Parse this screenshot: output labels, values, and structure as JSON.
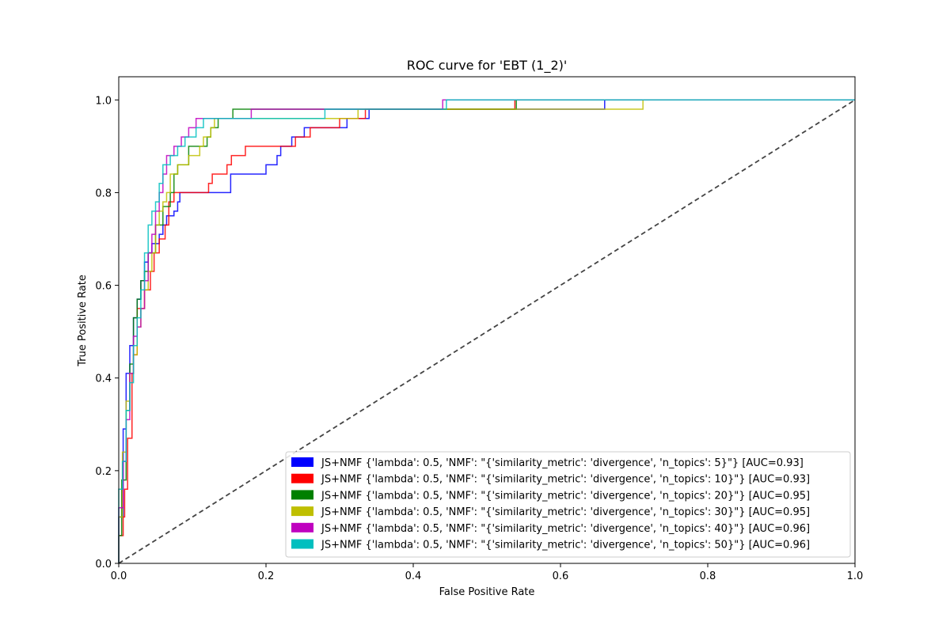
{
  "chart_data": {
    "type": "line",
    "title": "ROC curve for 'EBT (1_2)'",
    "xlabel": "False Positive Rate",
    "ylabel": "True Positive Rate",
    "xlim": [
      0.0,
      1.0
    ],
    "ylim": [
      0.0,
      1.05
    ],
    "xticks": [
      "0.0",
      "0.2",
      "0.4",
      "0.6",
      "0.8",
      "1.0"
    ],
    "yticks": [
      "0.0",
      "0.2",
      "0.4",
      "0.6",
      "0.8",
      "1.0"
    ],
    "grid": false,
    "legend_position": "lower-right",
    "diagonal": {
      "style": "dashed",
      "color": "#444444",
      "points": [
        [
          0,
          0
        ],
        [
          1,
          1
        ]
      ]
    },
    "series": [
      {
        "name": "JS+NMF {'lambda': 0.5, 'NMF': \"{'similarity_metric': 'divergence', 'n_topics': 5}\"} [AUC=0.93]",
        "color": "#0000ff",
        "points": [
          [
            0,
            0
          ],
          [
            0,
            0.1
          ],
          [
            0.006,
            0.1
          ],
          [
            0.006,
            0.29
          ],
          [
            0.01,
            0.29
          ],
          [
            0.01,
            0.41
          ],
          [
            0.015,
            0.41
          ],
          [
            0.015,
            0.47
          ],
          [
            0.02,
            0.47
          ],
          [
            0.02,
            0.53
          ],
          [
            0.025,
            0.53
          ],
          [
            0.025,
            0.57
          ],
          [
            0.03,
            0.57
          ],
          [
            0.03,
            0.61
          ],
          [
            0.035,
            0.61
          ],
          [
            0.035,
            0.65
          ],
          [
            0.04,
            0.65
          ],
          [
            0.04,
            0.67
          ],
          [
            0.045,
            0.67
          ],
          [
            0.045,
            0.69
          ],
          [
            0.055,
            0.69
          ],
          [
            0.055,
            0.71
          ],
          [
            0.06,
            0.71
          ],
          [
            0.06,
            0.73
          ],
          [
            0.065,
            0.73
          ],
          [
            0.065,
            0.75
          ],
          [
            0.075,
            0.75
          ],
          [
            0.075,
            0.76
          ],
          [
            0.08,
            0.76
          ],
          [
            0.08,
            0.78
          ],
          [
            0.083,
            0.78
          ],
          [
            0.083,
            0.8
          ],
          [
            0.152,
            0.8
          ],
          [
            0.152,
            0.84
          ],
          [
            0.2,
            0.84
          ],
          [
            0.2,
            0.86
          ],
          [
            0.215,
            0.86
          ],
          [
            0.215,
            0.88
          ],
          [
            0.22,
            0.88
          ],
          [
            0.22,
            0.9
          ],
          [
            0.235,
            0.9
          ],
          [
            0.235,
            0.92
          ],
          [
            0.252,
            0.92
          ],
          [
            0.252,
            0.94
          ],
          [
            0.31,
            0.94
          ],
          [
            0.31,
            0.96
          ],
          [
            0.34,
            0.96
          ],
          [
            0.34,
            0.98
          ],
          [
            0.66,
            0.98
          ],
          [
            0.66,
            1.0
          ],
          [
            1.0,
            1.0
          ]
        ]
      },
      {
        "name": "JS+NMF {'lambda': 0.5, 'NMF': \"{'similarity_metric': 'divergence', 'n_topics': 10}\"} [AUC=0.93]",
        "color": "#ff0000",
        "points": [
          [
            0,
            0
          ],
          [
            0,
            0.06
          ],
          [
            0.006,
            0.06
          ],
          [
            0.006,
            0.1
          ],
          [
            0.008,
            0.1
          ],
          [
            0.008,
            0.16
          ],
          [
            0.012,
            0.16
          ],
          [
            0.012,
            0.27
          ],
          [
            0.018,
            0.27
          ],
          [
            0.018,
            0.41
          ],
          [
            0.02,
            0.41
          ],
          [
            0.02,
            0.45
          ],
          [
            0.025,
            0.45
          ],
          [
            0.025,
            0.55
          ],
          [
            0.035,
            0.55
          ],
          [
            0.035,
            0.59
          ],
          [
            0.043,
            0.59
          ],
          [
            0.043,
            0.63
          ],
          [
            0.048,
            0.63
          ],
          [
            0.048,
            0.67
          ],
          [
            0.055,
            0.67
          ],
          [
            0.055,
            0.7
          ],
          [
            0.063,
            0.7
          ],
          [
            0.063,
            0.73
          ],
          [
            0.068,
            0.73
          ],
          [
            0.068,
            0.78
          ],
          [
            0.075,
            0.78
          ],
          [
            0.075,
            0.8
          ],
          [
            0.122,
            0.8
          ],
          [
            0.122,
            0.82
          ],
          [
            0.127,
            0.82
          ],
          [
            0.127,
            0.84
          ],
          [
            0.147,
            0.84
          ],
          [
            0.147,
            0.86
          ],
          [
            0.153,
            0.86
          ],
          [
            0.153,
            0.88
          ],
          [
            0.172,
            0.88
          ],
          [
            0.172,
            0.9
          ],
          [
            0.24,
            0.9
          ],
          [
            0.24,
            0.92
          ],
          [
            0.26,
            0.92
          ],
          [
            0.26,
            0.94
          ],
          [
            0.3,
            0.94
          ],
          [
            0.3,
            0.96
          ],
          [
            0.335,
            0.96
          ],
          [
            0.335,
            0.98
          ],
          [
            0.538,
            0.98
          ],
          [
            0.538,
            1.0
          ],
          [
            1.0,
            1.0
          ]
        ]
      },
      {
        "name": "JS+NMF {'lambda': 0.5, 'NMF': \"{'similarity_metric': 'divergence', 'n_topics': 20}\"} [AUC=0.95]",
        "color": "#008000",
        "points": [
          [
            0,
            0
          ],
          [
            0,
            0.06
          ],
          [
            0.004,
            0.06
          ],
          [
            0.004,
            0.18
          ],
          [
            0.01,
            0.18
          ],
          [
            0.01,
            0.33
          ],
          [
            0.015,
            0.33
          ],
          [
            0.015,
            0.43
          ],
          [
            0.02,
            0.43
          ],
          [
            0.02,
            0.53
          ],
          [
            0.025,
            0.53
          ],
          [
            0.025,
            0.57
          ],
          [
            0.03,
            0.57
          ],
          [
            0.03,
            0.61
          ],
          [
            0.035,
            0.61
          ],
          [
            0.035,
            0.63
          ],
          [
            0.04,
            0.63
          ],
          [
            0.04,
            0.67
          ],
          [
            0.05,
            0.67
          ],
          [
            0.05,
            0.73
          ],
          [
            0.06,
            0.73
          ],
          [
            0.06,
            0.77
          ],
          [
            0.07,
            0.77
          ],
          [
            0.07,
            0.8
          ],
          [
            0.075,
            0.8
          ],
          [
            0.075,
            0.84
          ],
          [
            0.08,
            0.84
          ],
          [
            0.08,
            0.86
          ],
          [
            0.095,
            0.86
          ],
          [
            0.095,
            0.9
          ],
          [
            0.12,
            0.9
          ],
          [
            0.12,
            0.92
          ],
          [
            0.125,
            0.92
          ],
          [
            0.125,
            0.94
          ],
          [
            0.135,
            0.94
          ],
          [
            0.135,
            0.96
          ],
          [
            0.155,
            0.96
          ],
          [
            0.155,
            0.98
          ],
          [
            0.54,
            0.98
          ],
          [
            0.54,
            1.0
          ],
          [
            1.0,
            1.0
          ]
        ]
      },
      {
        "name": "JS+NMF {'lambda': 0.5, 'NMF': \"{'similarity_metric': 'divergence', 'n_topics': 30}\"} [AUC=0.95]",
        "color": "#bfbf00",
        "points": [
          [
            0,
            0
          ],
          [
            0,
            0.1
          ],
          [
            0.005,
            0.1
          ],
          [
            0.005,
            0.24
          ],
          [
            0.01,
            0.24
          ],
          [
            0.01,
            0.35
          ],
          [
            0.015,
            0.35
          ],
          [
            0.015,
            0.41
          ],
          [
            0.02,
            0.41
          ],
          [
            0.02,
            0.45
          ],
          [
            0.025,
            0.45
          ],
          [
            0.025,
            0.51
          ],
          [
            0.03,
            0.51
          ],
          [
            0.03,
            0.55
          ],
          [
            0.035,
            0.55
          ],
          [
            0.035,
            0.59
          ],
          [
            0.04,
            0.59
          ],
          [
            0.04,
            0.63
          ],
          [
            0.045,
            0.63
          ],
          [
            0.045,
            0.67
          ],
          [
            0.05,
            0.67
          ],
          [
            0.05,
            0.73
          ],
          [
            0.055,
            0.73
          ],
          [
            0.055,
            0.76
          ],
          [
            0.06,
            0.76
          ],
          [
            0.06,
            0.78
          ],
          [
            0.065,
            0.78
          ],
          [
            0.065,
            0.8
          ],
          [
            0.07,
            0.8
          ],
          [
            0.07,
            0.84
          ],
          [
            0.08,
            0.84
          ],
          [
            0.08,
            0.86
          ],
          [
            0.095,
            0.86
          ],
          [
            0.095,
            0.88
          ],
          [
            0.11,
            0.88
          ],
          [
            0.11,
            0.9
          ],
          [
            0.115,
            0.9
          ],
          [
            0.115,
            0.92
          ],
          [
            0.125,
            0.92
          ],
          [
            0.125,
            0.94
          ],
          [
            0.13,
            0.94
          ],
          [
            0.13,
            0.96
          ],
          [
            0.325,
            0.96
          ],
          [
            0.325,
            0.98
          ],
          [
            0.712,
            0.98
          ],
          [
            0.712,
            1.0
          ],
          [
            1.0,
            1.0
          ]
        ]
      },
      {
        "name": "JS+NMF {'lambda': 0.5, 'NMF': \"{'similarity_metric': 'divergence', 'n_topics': 40}\"} [AUC=0.96]",
        "color": "#bf00bf",
        "points": [
          [
            0,
            0
          ],
          [
            0,
            0.12
          ],
          [
            0.006,
            0.12
          ],
          [
            0.006,
            0.22
          ],
          [
            0.01,
            0.22
          ],
          [
            0.01,
            0.31
          ],
          [
            0.015,
            0.31
          ],
          [
            0.015,
            0.41
          ],
          [
            0.02,
            0.41
          ],
          [
            0.02,
            0.49
          ],
          [
            0.025,
            0.49
          ],
          [
            0.025,
            0.51
          ],
          [
            0.03,
            0.51
          ],
          [
            0.03,
            0.55
          ],
          [
            0.035,
            0.55
          ],
          [
            0.035,
            0.61
          ],
          [
            0.04,
            0.61
          ],
          [
            0.04,
            0.67
          ],
          [
            0.045,
            0.67
          ],
          [
            0.045,
            0.71
          ],
          [
            0.05,
            0.71
          ],
          [
            0.05,
            0.76
          ],
          [
            0.055,
            0.76
          ],
          [
            0.055,
            0.8
          ],
          [
            0.06,
            0.8
          ],
          [
            0.06,
            0.84
          ],
          [
            0.065,
            0.84
          ],
          [
            0.065,
            0.88
          ],
          [
            0.075,
            0.88
          ],
          [
            0.075,
            0.9
          ],
          [
            0.085,
            0.9
          ],
          [
            0.085,
            0.92
          ],
          [
            0.095,
            0.92
          ],
          [
            0.095,
            0.94
          ],
          [
            0.105,
            0.94
          ],
          [
            0.105,
            0.96
          ],
          [
            0.18,
            0.96
          ],
          [
            0.18,
            0.98
          ],
          [
            0.44,
            0.98
          ],
          [
            0.44,
            1.0
          ],
          [
            1.0,
            1.0
          ]
        ]
      },
      {
        "name": "JS+NMF {'lambda': 0.5, 'NMF': \"{'similarity_metric': 'divergence', 'n_topics': 50}\"} [AUC=0.96]",
        "color": "#00bfbf",
        "points": [
          [
            0,
            0
          ],
          [
            0,
            0.16
          ],
          [
            0.005,
            0.16
          ],
          [
            0.005,
            0.22
          ],
          [
            0.01,
            0.22
          ],
          [
            0.01,
            0.33
          ],
          [
            0.015,
            0.33
          ],
          [
            0.015,
            0.39
          ],
          [
            0.02,
            0.39
          ],
          [
            0.02,
            0.47
          ],
          [
            0.025,
            0.47
          ],
          [
            0.025,
            0.53
          ],
          [
            0.03,
            0.53
          ],
          [
            0.03,
            0.59
          ],
          [
            0.035,
            0.59
          ],
          [
            0.035,
            0.67
          ],
          [
            0.04,
            0.67
          ],
          [
            0.04,
            0.73
          ],
          [
            0.045,
            0.73
          ],
          [
            0.045,
            0.76
          ],
          [
            0.05,
            0.76
          ],
          [
            0.05,
            0.78
          ],
          [
            0.055,
            0.78
          ],
          [
            0.055,
            0.82
          ],
          [
            0.06,
            0.82
          ],
          [
            0.06,
            0.86
          ],
          [
            0.07,
            0.86
          ],
          [
            0.07,
            0.88
          ],
          [
            0.08,
            0.88
          ],
          [
            0.08,
            0.9
          ],
          [
            0.09,
            0.9
          ],
          [
            0.09,
            0.92
          ],
          [
            0.105,
            0.92
          ],
          [
            0.105,
            0.94
          ],
          [
            0.115,
            0.94
          ],
          [
            0.115,
            0.96
          ],
          [
            0.28,
            0.96
          ],
          [
            0.28,
            0.98
          ],
          [
            0.445,
            0.98
          ],
          [
            0.445,
            1.0
          ],
          [
            1.0,
            1.0
          ]
        ]
      }
    ]
  }
}
